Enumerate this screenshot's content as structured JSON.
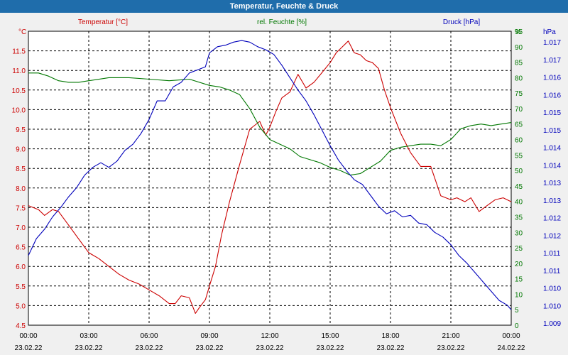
{
  "window": {
    "title": "Temperatur, Feuchte & Druck"
  },
  "colors": {
    "temperature": "#cc0000",
    "humidity": "#007700",
    "pressure": "#0000bb",
    "titlebar": "#1f6dab"
  },
  "chart_data": {
    "type": "line",
    "title": "Temperatur, Feuchte & Druck",
    "legend": [
      {
        "name": "Temperatur [°C]",
        "color": "#cc0000"
      },
      {
        "name": "rel. Feuchte [%]",
        "color": "#007700"
      },
      {
        "name": "Druck [hPa]",
        "color": "#0000bb"
      }
    ],
    "x_hours_range": [
      0,
      24
    ],
    "x_ticks": [
      {
        "time": "00:00",
        "date": "23.02.22"
      },
      {
        "time": "03:00",
        "date": "23.02.22"
      },
      {
        "time": "06:00",
        "date": "23.02.22"
      },
      {
        "time": "09:00",
        "date": "23.02.22"
      },
      {
        "time": "12:00",
        "date": "23.02.22"
      },
      {
        "time": "15:00",
        "date": "23.02.22"
      },
      {
        "time": "18:00",
        "date": "23.02.22"
      },
      {
        "time": "21:00",
        "date": "23.02.22"
      },
      {
        "time": "00:00",
        "date": "24.02.22"
      }
    ],
    "axes": {
      "left": {
        "unit": "°C",
        "min": 4.5,
        "max": 12.0,
        "ticks": [
          "11.5",
          "11.0",
          "10.5",
          "10.0",
          "9.5",
          "9.0",
          "8.5",
          "8.0",
          "7.5",
          "7.0",
          "6.5",
          "6.0",
          "5.5",
          "5.0",
          "4.5"
        ]
      },
      "right1": {
        "unit": "%",
        "min": 0,
        "max": 95,
        "ticks": [
          "95",
          "90",
          "85",
          "80",
          "75",
          "70",
          "65",
          "60",
          "55",
          "50",
          "45",
          "40",
          "35",
          "30",
          "25",
          "20",
          "15",
          "10",
          "5",
          "0"
        ]
      },
      "right2": {
        "unit": "hPa",
        "ticks": [
          "1.017",
          "1.017",
          "1.016",
          "1.016",
          "1.015",
          "1.015",
          "1.014",
          "1.014",
          "1.013",
          "1.013",
          "1.012",
          "1.012",
          "1.011",
          "1.011",
          "1.010",
          "1.010",
          "1.009"
        ]
      }
    },
    "series": [
      {
        "name": "Temperatur [°C]",
        "axis": "left",
        "color": "#cc0000",
        "x": [
          0,
          0.5,
          0.8,
          1.2,
          1.5,
          2.0,
          2.5,
          3.0,
          3.5,
          4.0,
          4.5,
          5.0,
          5.5,
          6.0,
          6.5,
          7.0,
          7.3,
          7.6,
          8.0,
          8.3,
          8.5,
          8.8,
          9.0,
          9.3,
          9.6,
          10.0,
          10.5,
          11.0,
          11.5,
          11.8,
          12.0,
          12.3,
          12.6,
          13.0,
          13.4,
          13.8,
          14.2,
          14.6,
          15.0,
          15.3,
          15.6,
          15.9,
          16.2,
          16.5,
          16.8,
          17.1,
          17.4,
          17.7,
          18.0,
          18.5,
          19.0,
          19.5,
          20.0,
          20.5,
          21.0,
          21.3,
          21.7,
          22.0,
          22.4,
          22.8,
          23.2,
          23.6,
          24.0
        ],
        "y": [
          7.55,
          7.45,
          7.3,
          7.45,
          7.4,
          7.05,
          6.7,
          6.35,
          6.2,
          6.0,
          5.8,
          5.65,
          5.55,
          5.4,
          5.25,
          5.05,
          5.05,
          5.25,
          5.2,
          4.8,
          4.95,
          5.15,
          5.5,
          6.0,
          6.8,
          7.65,
          8.6,
          9.5,
          9.7,
          9.35,
          9.55,
          9.95,
          10.3,
          10.45,
          10.9,
          10.55,
          10.7,
          10.95,
          11.2,
          11.45,
          11.6,
          11.75,
          11.45,
          11.4,
          11.25,
          11.2,
          11.05,
          10.5,
          10.05,
          9.4,
          8.9,
          8.55,
          8.55,
          7.8,
          7.7,
          7.75,
          7.65,
          7.75,
          7.4,
          7.55,
          7.7,
          7.75,
          7.65
        ]
      },
      {
        "name": "rel. Feuchte [%]",
        "axis": "right1",
        "color": "#007700",
        "x": [
          0,
          0.5,
          1.0,
          1.5,
          2.0,
          2.5,
          3.0,
          4.0,
          5.0,
          6.0,
          7.0,
          8.0,
          9.0,
          9.5,
          10.0,
          10.5,
          11.0,
          11.5,
          12.0,
          12.5,
          13.0,
          13.5,
          14.0,
          14.5,
          15.0,
          15.5,
          16.0,
          16.5,
          17.0,
          17.5,
          18.0,
          18.5,
          19.0,
          19.5,
          20.0,
          20.5,
          21.0,
          21.5,
          22.0,
          22.5,
          23.0,
          23.5,
          24.0
        ],
        "y": [
          81.5,
          81.5,
          80.5,
          79,
          78.5,
          78.5,
          79,
          80,
          80,
          79.5,
          79,
          79.5,
          77.5,
          77,
          76,
          74.5,
          70,
          64,
          60,
          58.5,
          57,
          54.5,
          53.5,
          52.5,
          51,
          50,
          48.5,
          49,
          51,
          53,
          56.5,
          57.5,
          58,
          58.5,
          58.5,
          58,
          60,
          63.5,
          64.5,
          65,
          64.5,
          65,
          65.5
        ]
      },
      {
        "name": "Druck [hPa]",
        "axis": "right1",
        "color": "#0000bb",
        "x": [
          0,
          0.4,
          0.8,
          1.2,
          1.6,
          2.0,
          2.4,
          2.8,
          3.2,
          3.6,
          4.0,
          4.4,
          4.8,
          5.2,
          5.6,
          6.0,
          6.4,
          6.8,
          7.2,
          7.6,
          8.0,
          8.4,
          8.8,
          9.0,
          9.4,
          9.8,
          10.2,
          10.6,
          11.0,
          11.4,
          11.8,
          12.2,
          12.6,
          13.0,
          13.4,
          13.8,
          14.2,
          14.6,
          15.0,
          15.4,
          15.8,
          16.2,
          16.6,
          17.0,
          17.4,
          17.8,
          18.2,
          18.6,
          19.0,
          19.4,
          19.8,
          20.2,
          20.6,
          21.0,
          21.4,
          21.8,
          22.2,
          22.6,
          23.0,
          23.4,
          23.8,
          24.0
        ],
        "y": [
          22.5,
          28,
          31,
          35,
          38,
          41.5,
          44.5,
          48.5,
          51,
          52.5,
          51,
          53,
          56.5,
          58.5,
          62,
          66.5,
          72.5,
          72.5,
          77,
          78.5,
          81.5,
          82.5,
          83.5,
          88,
          90,
          90.5,
          91.5,
          92,
          91.5,
          90,
          89,
          87.5,
          84,
          80,
          76,
          72.5,
          68,
          63,
          58,
          53.5,
          50,
          47,
          45.5,
          42,
          38.5,
          36,
          37,
          35,
          35.5,
          33,
          32.5,
          30,
          28.5,
          26,
          22.5,
          20,
          17,
          14,
          11,
          8,
          6.5,
          5
        ]
      }
    ]
  }
}
